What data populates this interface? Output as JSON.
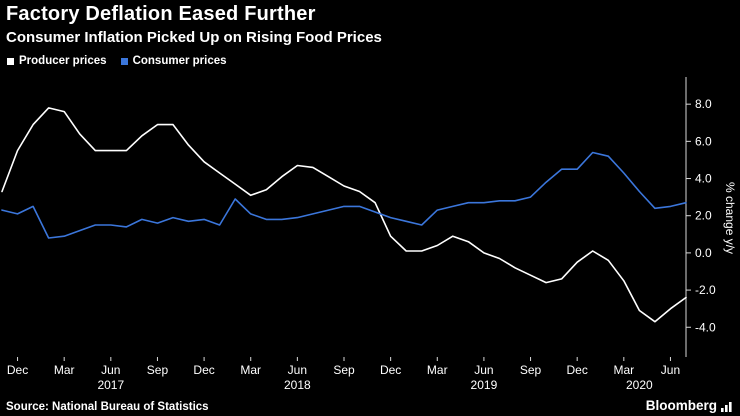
{
  "header": {
    "title": "Factory Deflation Eased Further",
    "subtitle": "Consumer Inflation Picked Up on Rising Food Prices"
  },
  "legend": {
    "items": [
      {
        "label": "Producer prices",
        "color": "#ffffff"
      },
      {
        "label": "Consumer prices",
        "color": "#3b76db"
      }
    ]
  },
  "footer": {
    "source": "Source: National Bureau of Statistics",
    "brand": "Bloomberg"
  },
  "colors": {
    "background": "#000000",
    "text": "#ffffff",
    "axis": "#d9d9d9",
    "producer_line": "#ffffff",
    "consumer_line": "#3b76db"
  },
  "chart_data": {
    "type": "line",
    "title": "Factory Deflation Eased Further",
    "subtitle": "Consumer Inflation Picked Up on Rising Food Prices",
    "xlabel": "",
    "ylabel": "% change y/y",
    "ylim": [
      -5.6,
      9.3
    ],
    "yticks": [
      8.0,
      6.0,
      4.0,
      2.0,
      0.0,
      -2.0,
      -4.0
    ],
    "grid": false,
    "legend_position": "top-left",
    "x": [
      "2016-11",
      "2016-12",
      "2017-01",
      "2017-02",
      "2017-03",
      "2017-04",
      "2017-05",
      "2017-06",
      "2017-07",
      "2017-08",
      "2017-09",
      "2017-10",
      "2017-11",
      "2017-12",
      "2018-01",
      "2018-02",
      "2018-03",
      "2018-04",
      "2018-05",
      "2018-06",
      "2018-07",
      "2018-08",
      "2018-09",
      "2018-10",
      "2018-11",
      "2018-12",
      "2019-01",
      "2019-02",
      "2019-03",
      "2019-04",
      "2019-05",
      "2019-06",
      "2019-07",
      "2019-08",
      "2019-09",
      "2019-10",
      "2019-11",
      "2019-12",
      "2020-01",
      "2020-02",
      "2020-03",
      "2020-04",
      "2020-05",
      "2020-06",
      "2020-07"
    ],
    "xticks": [
      {
        "index": 1,
        "label": "Dec"
      },
      {
        "index": 4,
        "label": "Mar"
      },
      {
        "index": 7,
        "label": "Jun"
      },
      {
        "index": 10,
        "label": "Sep"
      },
      {
        "index": 13,
        "label": "Dec"
      },
      {
        "index": 16,
        "label": "Mar"
      },
      {
        "index": 19,
        "label": "Jun"
      },
      {
        "index": 22,
        "label": "Sep"
      },
      {
        "index": 25,
        "label": "Dec"
      },
      {
        "index": 28,
        "label": "Mar"
      },
      {
        "index": 31,
        "label": "Jun"
      },
      {
        "index": 34,
        "label": "Sep"
      },
      {
        "index": 37,
        "label": "Dec"
      },
      {
        "index": 40,
        "label": "Mar"
      },
      {
        "index": 43,
        "label": "Jun"
      }
    ],
    "year_ticks": [
      {
        "index": 7,
        "label": "2017"
      },
      {
        "index": 19,
        "label": "2018"
      },
      {
        "index": 31,
        "label": "2019"
      },
      {
        "index": 41,
        "label": "2020"
      }
    ],
    "series": [
      {
        "name": "Producer prices",
        "color": "#ffffff",
        "values": [
          3.3,
          5.5,
          6.9,
          7.8,
          7.6,
          6.4,
          5.5,
          5.5,
          5.5,
          6.3,
          6.9,
          6.9,
          5.8,
          4.9,
          4.3,
          3.7,
          3.1,
          3.4,
          4.1,
          4.7,
          4.6,
          4.1,
          3.6,
          3.3,
          2.7,
          0.9,
          0.1,
          0.1,
          0.4,
          0.9,
          0.6,
          0.0,
          -0.3,
          -0.8,
          -1.2,
          -1.6,
          -1.4,
          -0.5,
          0.1,
          -0.4,
          -1.5,
          -3.1,
          -3.7,
          -3.0,
          -2.4
        ]
      },
      {
        "name": "Consumer prices",
        "color": "#3b76db",
        "values": [
          2.3,
          2.1,
          2.5,
          0.8,
          0.9,
          1.2,
          1.5,
          1.5,
          1.4,
          1.8,
          1.6,
          1.9,
          1.7,
          1.8,
          1.5,
          2.9,
          2.1,
          1.8,
          1.8,
          1.9,
          2.1,
          2.3,
          2.5,
          2.5,
          2.2,
          1.9,
          1.7,
          1.5,
          2.3,
          2.5,
          2.7,
          2.7,
          2.8,
          2.8,
          3.0,
          3.8,
          4.5,
          4.5,
          5.4,
          5.2,
          4.3,
          3.3,
          2.4,
          2.5,
          2.7
        ]
      }
    ]
  }
}
